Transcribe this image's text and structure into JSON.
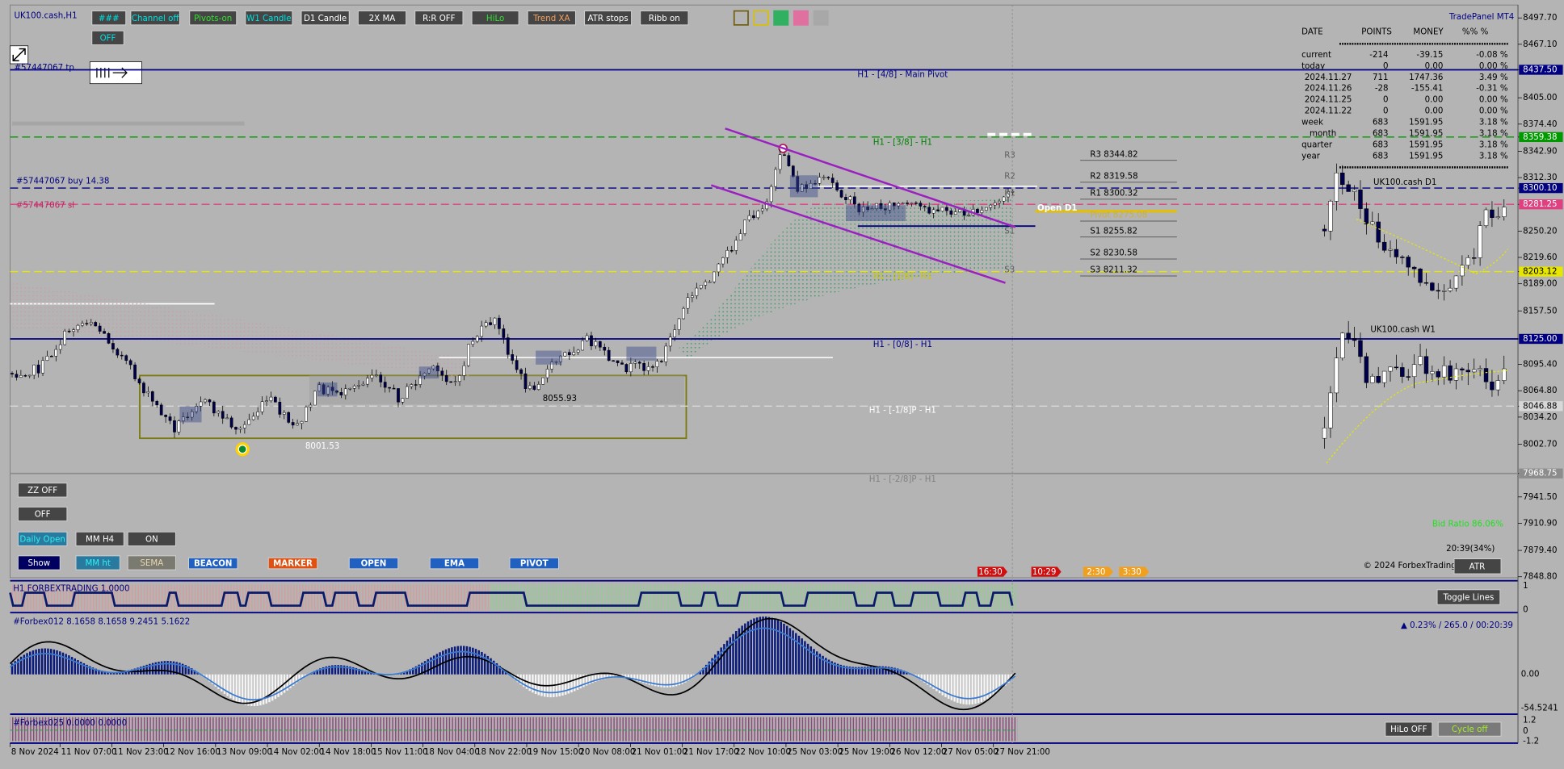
{
  "window": {
    "title": "UK100.cash,H1",
    "brand": "TradePanel MT4",
    "d1_label": "UK100.cash D1",
    "w1_label": "UK100.cash W1"
  },
  "top_buttons": [
    "###",
    "Channel off",
    "Pivots-on",
    "W1 Candle",
    "D1 Candle",
    "2X MA",
    "R:R OFF",
    "HiLo",
    "Trend XA",
    "ATR stops",
    "Ribb on",
    "OFF"
  ],
  "left_buttons": [
    "ZZ OFF",
    "OFF",
    "Daily Open",
    "MM H4",
    "ON",
    "Show",
    "MM ht",
    "SEMA",
    "BEACON",
    "MARKER",
    "OPEN",
    "EMA",
    "PIVOT"
  ],
  "trade_lines": [
    "#57447067 tp",
    "#57447067 buy 14.38",
    "#57447067 sl"
  ],
  "level_labels": [
    "H1 - [4/8] - Main Pivot",
    "H1 - [3/8] - H1",
    "H1 - [1/8] - H1",
    "H1 - [0/8] - H1",
    "H1 - [-1/8]P - H1",
    "H1 - [-2/8]P - H1"
  ],
  "pivots": [
    "R3 8344.82",
    "R2 8319.58",
    "R1 8300.32",
    "Pivot 8275.08",
    "S1 8255.82",
    "S2 8230.58",
    "S3 8211.32"
  ],
  "pivot_tags": [
    "R3",
    "R2",
    "R1",
    "S1",
    "S3"
  ],
  "chart_notes": {
    "low_a": "8055.93",
    "low_b": "8001.53",
    "open_d1": "Open D1",
    "bid_ratio": "Bid Ratio 86.06%",
    "clock": "20:39(34%)",
    "copyright": "© 2024 ForbexTrading",
    "atr": "ATR"
  },
  "timers": [
    "16:30",
    "10:29",
    "2:30",
    "3:30"
  ],
  "price_axis": [
    {
      "value": 8497.7,
      "label": "8497.70"
    },
    {
      "value": 8467.1,
      "label": "8467.10"
    },
    {
      "value": 8437.5,
      "label": "8437.50",
      "bg": "#000080",
      "line": "solid"
    },
    {
      "value": 8405,
      "label": "8405.00"
    },
    {
      "value": 8374.4,
      "label": "8374.40"
    },
    {
      "value": 8359.38,
      "label": "8359.38",
      "bg": "#009900",
      "line": "dashed"
    },
    {
      "value": 8342.9,
      "label": "8342.90"
    },
    {
      "value": 8312.3,
      "label": "8312.30"
    },
    {
      "value": 8300.1,
      "label": "8300.10",
      "bg": "#000080",
      "line": "dashed"
    },
    {
      "value": 8281.25,
      "label": "8281.25",
      "bg": "#e0407f",
      "line": "dashed"
    },
    {
      "value": 8250.2,
      "label": "8250.20"
    },
    {
      "value": 8219.6,
      "label": "8219.60"
    },
    {
      "value": 8203.12,
      "label": "8203.12",
      "bg": "#e6e600",
      "line": "dashed"
    },
    {
      "value": 8189,
      "label": "8189.00"
    },
    {
      "value": 8157.5,
      "label": "8157.50"
    },
    {
      "value": 8125,
      "label": "8125.00",
      "bg": "#000080",
      "line": "solid"
    },
    {
      "value": 8095.4,
      "label": "8095.40"
    },
    {
      "value": 8064.8,
      "label": "8064.80"
    },
    {
      "value": 8046.88,
      "label": "8046.88",
      "bg": "#d8d8d8",
      "line": "dashed"
    },
    {
      "value": 8034.2,
      "label": "8034.20"
    },
    {
      "value": 8002.7,
      "label": "8002.70"
    },
    {
      "value": 7968.75,
      "label": "7968.75",
      "bg": "#8c8c8c",
      "line": "solid"
    },
    {
      "value": 7941.5,
      "label": "7941.50"
    },
    {
      "value": 7910.9,
      "label": "7910.90"
    },
    {
      "value": 7879.4,
      "label": "7879.40"
    },
    {
      "value": 7848.8,
      "label": "7848.80"
    }
  ],
  "table": {
    "header": [
      "DATE",
      "POINTS",
      "MONEY",
      "%% %"
    ],
    "rows": [
      [
        "current",
        "-214",
        "-39.15",
        "-0.08 %"
      ],
      [
        "today",
        "0",
        "0.00",
        "0.00 %"
      ],
      [
        "2024.11.27",
        "711",
        "1747.36",
        "3.49 %"
      ],
      [
        "2024.11.26",
        "-28",
        "-155.41",
        "-0.31 %"
      ],
      [
        "2024.11.25",
        "0",
        "0.00",
        "0.00 %"
      ],
      [
        "2024.11.22",
        "0",
        "0.00",
        "0.00 %"
      ],
      [
        "week",
        "683",
        "1591.95",
        "3.18 %"
      ],
      [
        "month",
        "683",
        "1591.95",
        "3.18 %"
      ],
      [
        "quarter",
        "683",
        "1591.95",
        "3.18 %"
      ],
      [
        "year",
        "683",
        "1591.95",
        "3.18 %"
      ]
    ]
  },
  "subwindows": {
    "trend_title": "H1 FORBEXTRADING 1.0000",
    "toggle": "Toggle Lines",
    "trend_axis": [
      "1",
      "0"
    ],
    "osc_title": "#Forbex012 8.1658 8.1658 9.2451 5.1622",
    "osc_status": "▲ 0.23% / 265.0 / 00:20:39",
    "osc_axis": [
      "0.00",
      "-54.5241"
    ],
    "cycle_title": "#Forbex025 0.0000 0.0000",
    "cycle_axis": [
      "1.2",
      "0",
      "-1.2"
    ],
    "hilo": "HiLo OFF",
    "cycle": "Cycle off"
  },
  "dates": [
    "8 Nov 2024",
    "11 Nov 07:00",
    "11 Nov 23:00",
    "12 Nov 16:00",
    "13 Nov 09:00",
    "14 Nov 02:00",
    "14 Nov 18:00",
    "15 Nov 11:00",
    "18 Nov 04:00",
    "18 Nov 22:00",
    "19 Nov 15:00",
    "20 Nov 08:00",
    "21 Nov 01:00",
    "21 Nov 17:00",
    "22 Nov 10:00",
    "25 Nov 03:00",
    "25 Nov 19:00",
    "26 Nov 12:00",
    "27 Nov 05:00",
    "27 Nov 21:00"
  ]
}
